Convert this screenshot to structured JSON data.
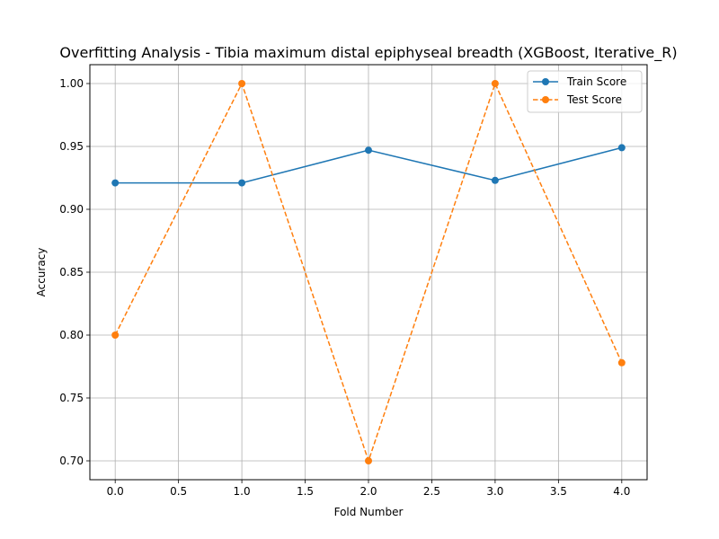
{
  "chart_data": {
    "type": "line",
    "title": "Overfitting Analysis - Tibia maximum distal epiphyseal breadth (XGBoost, Iterative_R)",
    "xlabel": "Fold Number",
    "ylabel": "Accuracy",
    "xlim": [
      -0.2,
      4.2
    ],
    "ylim": [
      0.685,
      1.015
    ],
    "xticks": [
      0.0,
      0.5,
      1.0,
      1.5,
      2.0,
      2.5,
      3.0,
      3.5,
      4.0
    ],
    "xtick_labels": [
      "0.0",
      "0.5",
      "1.0",
      "1.5",
      "2.0",
      "2.5",
      "3.0",
      "3.5",
      "4.0"
    ],
    "yticks": [
      0.7,
      0.75,
      0.8,
      0.85,
      0.9,
      0.95,
      1.0
    ],
    "ytick_labels": [
      "0.70",
      "0.75",
      "0.80",
      "0.85",
      "0.90",
      "0.95",
      "1.00"
    ],
    "grid": true,
    "legend_position": "top-right",
    "x": [
      0,
      1,
      2,
      3,
      4
    ],
    "series": [
      {
        "name": "Train Score",
        "values": [
          0.921,
          0.921,
          0.947,
          0.923,
          0.949
        ],
        "color": "#1f77b4",
        "linestyle": "solid",
        "marker": "circle"
      },
      {
        "name": "Test Score",
        "values": [
          0.8,
          1.0,
          0.7,
          1.0,
          0.778
        ],
        "color": "#ff7f0e",
        "linestyle": "dashed",
        "marker": "circle"
      }
    ]
  }
}
